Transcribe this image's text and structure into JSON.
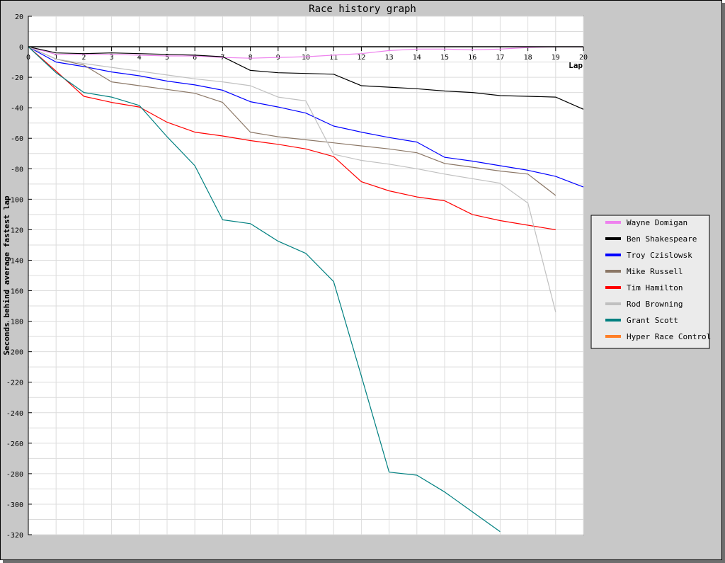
{
  "chart_data": {
    "type": "line",
    "title": "Race history graph",
    "xlabel": "Lap",
    "ylabel": "Seconds behind average fastest lap",
    "xlim": [
      0,
      20
    ],
    "ylim": [
      -320,
      20
    ],
    "xticks": [
      0,
      1,
      2,
      3,
      4,
      5,
      6,
      7,
      8,
      9,
      10,
      11,
      12,
      13,
      14,
      15,
      16,
      17,
      18,
      19,
      20
    ],
    "yticks": [
      20,
      0,
      -20,
      -40,
      -60,
      -80,
      -100,
      -120,
      -140,
      -160,
      -180,
      -200,
      -220,
      -240,
      -260,
      -280,
      -300,
      -320
    ],
    "grid": true,
    "legend_position": "right",
    "series": [
      {
        "name": "Wayne Domigan",
        "color": "#ee82ee",
        "x": [
          0,
          1,
          2,
          3,
          4,
          5,
          6,
          7,
          8,
          9,
          10,
          11,
          12,
          13,
          14,
          15,
          16,
          17,
          18,
          19,
          20
        ],
        "values": [
          0,
          -5,
          -5,
          -5,
          -5.5,
          -6,
          -6,
          -7,
          -7.5,
          -7,
          -6.5,
          -5.5,
          -4.5,
          -2.5,
          -1.5,
          -1.5,
          -2,
          -1.5,
          -0.5,
          0,
          0
        ]
      },
      {
        "name": "Ben Shakespeare",
        "color": "#000000",
        "x": [
          0,
          1,
          2,
          3,
          4,
          5,
          6,
          7,
          8,
          9,
          10,
          11,
          12,
          13,
          14,
          15,
          16,
          17,
          18,
          19,
          20
        ],
        "values": [
          0,
          -4,
          -4.5,
          -4,
          -4.5,
          -5,
          -5.5,
          -6.5,
          -15.5,
          -17,
          -17.5,
          -18,
          -25.5,
          -26.5,
          -27.5,
          -29,
          -30,
          -32,
          -32.5,
          -33,
          -41
        ]
      },
      {
        "name": "Troy Czislowsk",
        "color": "#0000ff",
        "x": [
          0,
          1,
          2,
          3,
          4,
          5,
          6,
          7,
          8,
          9,
          10,
          11,
          12,
          13,
          14,
          15,
          16,
          17,
          18,
          19,
          20
        ],
        "values": [
          0,
          -10,
          -13,
          -16.5,
          -19,
          -22.5,
          -25,
          -28.5,
          -36,
          -39.5,
          -43.5,
          -52,
          -56,
          -59.5,
          -62.5,
          -72.5,
          -75,
          -78,
          -81,
          -85,
          -92
        ]
      },
      {
        "name": "Mike Russell",
        "color": "#8b7766",
        "x": [
          0,
          1,
          2,
          3,
          4,
          5,
          6,
          7,
          8,
          9,
          10,
          11,
          12,
          13,
          14,
          15,
          16,
          17,
          18,
          19
        ],
        "values": [
          0,
          -8,
          -12,
          -23,
          -25.5,
          -28,
          -30.5,
          -36.5,
          -56,
          -59,
          -61,
          -63,
          -65,
          -67,
          -69.5,
          -76.5,
          -79,
          -81.5,
          -83.5,
          -97.5
        ]
      },
      {
        "name": "Tim Hamilton",
        "color": "#ff0000",
        "x": [
          0,
          1,
          2,
          3,
          4,
          5,
          6,
          7,
          8,
          9,
          10,
          11,
          12,
          13,
          14,
          15,
          16,
          17,
          18,
          19
        ],
        "values": [
          0,
          -16,
          -32.5,
          -36.5,
          -39.5,
          -49.5,
          -56,
          -58.5,
          -61.5,
          -64,
          -67,
          -72,
          -88.5,
          -94.5,
          -98.5,
          -101,
          -110,
          -114,
          -117,
          -120
        ]
      },
      {
        "name": "Rod Browning",
        "color": "#c0c0c0",
        "x": [
          0,
          1,
          2,
          3,
          4,
          5,
          6,
          7,
          8,
          9,
          10,
          11,
          12,
          13,
          14,
          15,
          16,
          17,
          18,
          19
        ],
        "values": [
          0,
          -8,
          -11,
          -13.5,
          -16,
          -18.5,
          -21,
          -23,
          -25.5,
          -33,
          -35.5,
          -70.5,
          -74.5,
          -77,
          -80,
          -83.5,
          -86.5,
          -89.5,
          -102.5,
          -174
        ]
      },
      {
        "name": "Grant Scott",
        "color": "#008080",
        "x": [
          0,
          1,
          2,
          3,
          4,
          5,
          6,
          7,
          8,
          9,
          10,
          11,
          12,
          13,
          14,
          15,
          16,
          17
        ],
        "values": [
          0,
          -17,
          -30,
          -33,
          -38.5,
          -59,
          -78,
          -113.5,
          -116,
          -127.5,
          -135.5,
          -154,
          -216,
          -279,
          -281,
          -292,
          -305,
          -318
        ]
      },
      {
        "name": "Hyper Race Control",
        "color": "#ff7f27",
        "x": [],
        "values": []
      }
    ]
  }
}
